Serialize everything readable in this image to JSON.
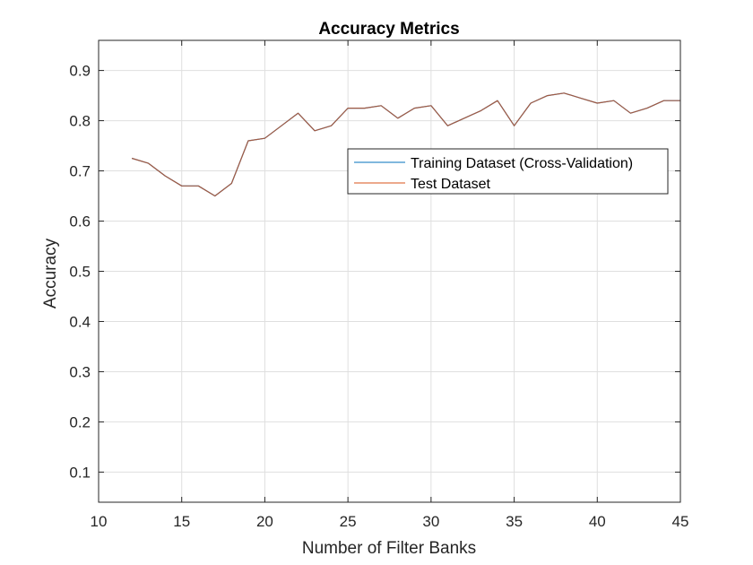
{
  "chart_data": {
    "type": "line",
    "title": "Accuracy Metrics",
    "xlabel": "Number of Filter Banks",
    "ylabel": "Accuracy",
    "xlim": [
      10,
      45
    ],
    "ylim": [
      0.04,
      0.96
    ],
    "xticks": [
      10,
      15,
      20,
      25,
      30,
      35,
      40,
      45
    ],
    "yticks": [
      0.1,
      0.2,
      0.3,
      0.4,
      0.5,
      0.6,
      0.7,
      0.8,
      0.9
    ],
    "grid": true,
    "legend_position": "upper-right",
    "x": [
      12,
      13,
      14,
      15,
      16,
      17,
      18,
      19,
      20,
      21,
      22,
      23,
      24,
      25,
      26,
      27,
      28,
      29,
      30,
      31,
      32,
      33,
      34,
      35,
      36,
      37,
      38,
      39,
      40,
      41,
      42,
      43,
      44,
      45
    ],
    "series": [
      {
        "name": "Training Dataset (Cross-Validation)",
        "color": "#0072BD",
        "values": [
          0.725,
          0.715,
          0.69,
          0.67,
          0.67,
          0.65,
          0.675,
          0.76,
          0.765,
          0.79,
          0.815,
          0.78,
          0.79,
          0.825,
          0.825,
          0.83,
          0.805,
          0.825,
          0.83,
          0.79,
          0.805,
          0.82,
          0.84,
          0.79,
          0.835,
          0.85,
          0.855,
          0.845,
          0.835,
          0.84,
          0.815,
          0.825,
          0.84,
          0.84
        ]
      },
      {
        "name": "Test Dataset",
        "color": "#D95319",
        "values": [
          0.725,
          0.715,
          0.69,
          0.67,
          0.67,
          0.65,
          0.675,
          0.76,
          0.765,
          0.79,
          0.815,
          0.78,
          0.79,
          0.825,
          0.825,
          0.83,
          0.805,
          0.825,
          0.83,
          0.79,
          0.805,
          0.82,
          0.84,
          0.79,
          0.835,
          0.85,
          0.855,
          0.845,
          0.835,
          0.84,
          0.815,
          0.825,
          0.84,
          0.84
        ]
      }
    ]
  },
  "colors": {
    "axis": "#262626",
    "grid": "#dfdfdf",
    "overlap_line": "#8B2545"
  }
}
